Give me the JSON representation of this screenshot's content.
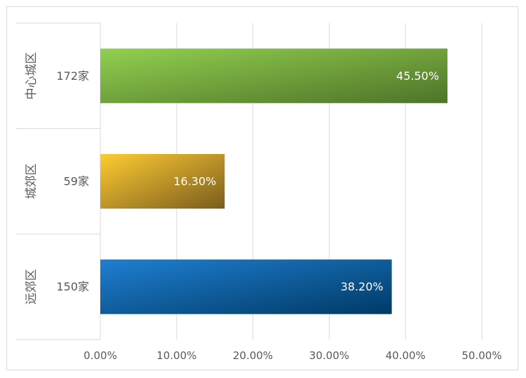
{
  "chart_data": {
    "type": "bar",
    "orientation": "horizontal",
    "categories": [
      {
        "group": "中心城区",
        "label": "172家"
      },
      {
        "group": "城郊区",
        "label": "59家"
      },
      {
        "group": "远郊区",
        "label": "150家"
      }
    ],
    "values": [
      45.5,
      16.3,
      38.2
    ],
    "value_labels": [
      "45.50%",
      "16.30%",
      "38.20%"
    ],
    "xlim": [
      0,
      50
    ],
    "x_ticks": [
      0,
      10,
      20,
      30,
      40,
      50
    ],
    "x_tick_labels": [
      "0.00%",
      "10.00%",
      "20.00%",
      "30.00%",
      "40.00%",
      "50.00%"
    ],
    "title": "",
    "xlabel": "",
    "ylabel": "",
    "grid": "vertical",
    "legend": "none",
    "bar_colors": [
      {
        "start": "#92d050",
        "end": "#4f7328"
      },
      {
        "start": "#ffcc33",
        "end": "#7a5c1e"
      },
      {
        "start": "#1f7fd1",
        "end": "#003a66"
      }
    ],
    "label_color": "#ffffff",
    "text_color": "#595959",
    "gridline_color": "#d9d9d9"
  }
}
